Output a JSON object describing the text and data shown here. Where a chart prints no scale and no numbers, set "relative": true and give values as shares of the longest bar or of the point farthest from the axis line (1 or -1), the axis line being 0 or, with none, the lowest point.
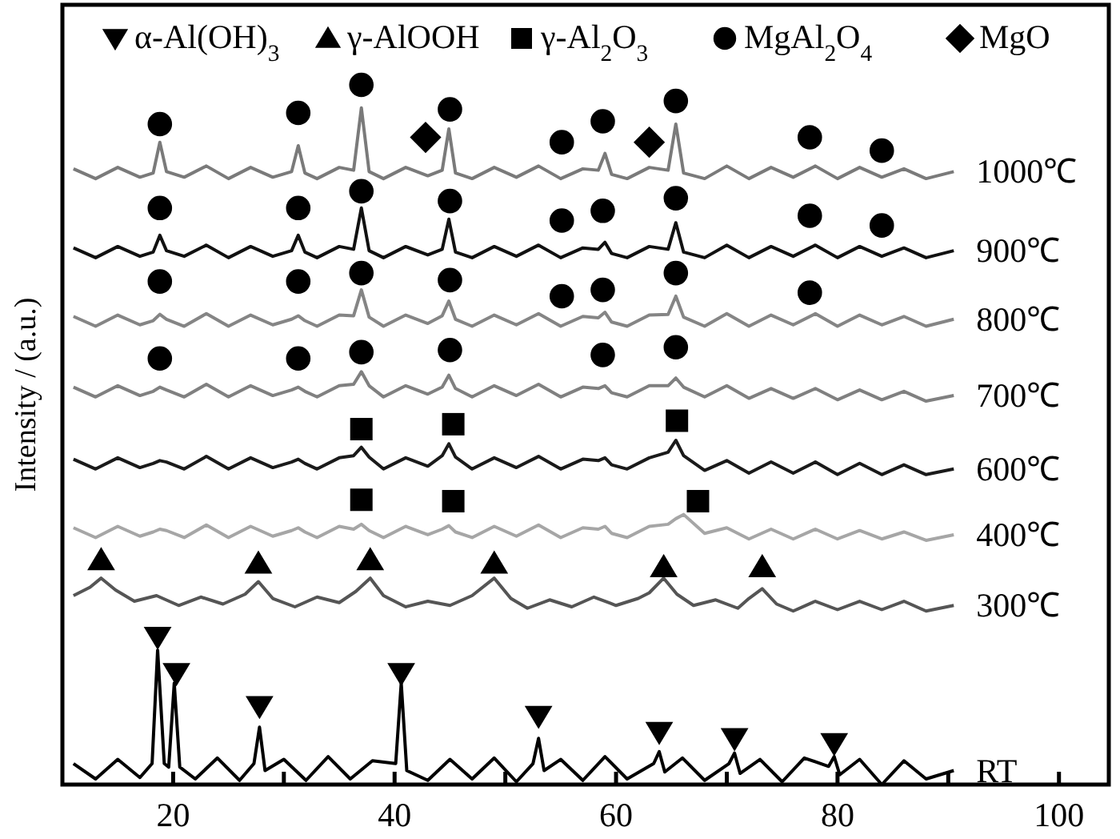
{
  "chart_data": {
    "type": "line",
    "relative": true,
    "ylabel": "Intensity / (a.u.)",
    "xlim": [
      10,
      104.5
    ],
    "xticks": [
      20,
      {
        "value": 30,
        "label": null
      },
      40,
      {
        "value": 50,
        "label": null
      },
      60,
      {
        "value": 70,
        "label": null
      },
      80,
      {
        "value": 90,
        "label": null
      },
      100
    ],
    "legend": "top",
    "grid": false,
    "x": [
      11,
      13,
      15,
      17,
      18.2,
      18.8,
      19.4,
      21,
      23,
      25,
      27,
      29,
      30.7,
      31.3,
      31.9,
      33,
      35,
      36.3,
      37,
      37.7,
      39,
      41,
      43,
      44.3,
      44.9,
      45.5,
      47,
      49,
      51,
      53,
      55,
      57,
      58.4,
      59,
      59.6,
      61,
      63,
      64.7,
      65.4,
      66.1,
      68,
      70,
      72,
      74,
      76,
      78,
      80,
      82,
      84,
      86,
      88,
      90.5
    ],
    "series": [
      {
        "name": "1000℃",
        "color": "#7a7a7a",
        "values": [
          0.88,
          0.866,
          0.882,
          0.868,
          0.874,
          0.918,
          0.876,
          0.868,
          0.884,
          0.866,
          0.882,
          0.868,
          0.876,
          0.913,
          0.874,
          0.866,
          0.882,
          0.878,
          0.967,
          0.876,
          0.866,
          0.882,
          0.87,
          0.878,
          0.937,
          0.874,
          0.866,
          0.882,
          0.868,
          0.884,
          0.866,
          0.88,
          0.878,
          0.902,
          0.872,
          0.866,
          0.882,
          0.878,
          0.944,
          0.874,
          0.866,
          0.884,
          0.866,
          0.882,
          0.868,
          0.884,
          0.866,
          0.882,
          0.868,
          0.88,
          0.866,
          0.876
        ]
      },
      {
        "name": "900℃",
        "color": "#111111",
        "values": [
          0.767,
          0.753,
          0.769,
          0.755,
          0.761,
          0.785,
          0.763,
          0.755,
          0.771,
          0.753,
          0.769,
          0.755,
          0.763,
          0.785,
          0.761,
          0.753,
          0.769,
          0.765,
          0.824,
          0.763,
          0.753,
          0.769,
          0.757,
          0.765,
          0.808,
          0.761,
          0.753,
          0.769,
          0.755,
          0.771,
          0.753,
          0.767,
          0.765,
          0.775,
          0.759,
          0.753,
          0.769,
          0.765,
          0.803,
          0.761,
          0.753,
          0.771,
          0.753,
          0.769,
          0.755,
          0.771,
          0.753,
          0.769,
          0.755,
          0.767,
          0.753,
          0.763
        ]
      },
      {
        "name": "800℃",
        "color": "#858585",
        "values": [
          0.669,
          0.655,
          0.671,
          0.657,
          0.663,
          0.672,
          0.665,
          0.655,
          0.673,
          0.655,
          0.671,
          0.657,
          0.665,
          0.67,
          0.663,
          0.655,
          0.671,
          0.67,
          0.707,
          0.668,
          0.655,
          0.671,
          0.659,
          0.67,
          0.691,
          0.665,
          0.655,
          0.671,
          0.657,
          0.673,
          0.655,
          0.669,
          0.667,
          0.675,
          0.661,
          0.655,
          0.671,
          0.672,
          0.698,
          0.668,
          0.655,
          0.673,
          0.655,
          0.671,
          0.657,
          0.673,
          0.655,
          0.671,
          0.657,
          0.669,
          0.655,
          0.665
        ]
      },
      {
        "name": "700℃",
        "color": "#808080",
        "values": [
          0.568,
          0.554,
          0.57,
          0.556,
          0.562,
          0.568,
          0.564,
          0.554,
          0.572,
          0.554,
          0.57,
          0.556,
          0.564,
          0.568,
          0.562,
          0.554,
          0.57,
          0.572,
          0.59,
          0.57,
          0.554,
          0.57,
          0.558,
          0.568,
          0.585,
          0.566,
          0.554,
          0.57,
          0.556,
          0.572,
          0.554,
          0.568,
          0.566,
          0.57,
          0.56,
          0.554,
          0.57,
          0.57,
          0.581,
          0.568,
          0.554,
          0.57,
          0.552,
          0.566,
          0.552,
          0.566,
          0.55,
          0.564,
          0.55,
          0.562,
          0.548,
          0.556
        ]
      },
      {
        "name": "600℃",
        "color": "#1a1a1a",
        "values": [
          0.465,
          0.451,
          0.467,
          0.453,
          0.459,
          0.463,
          0.461,
          0.451,
          0.469,
          0.451,
          0.467,
          0.453,
          0.461,
          0.465,
          0.459,
          0.451,
          0.467,
          0.47,
          0.482,
          0.468,
          0.451,
          0.467,
          0.455,
          0.47,
          0.487,
          0.468,
          0.451,
          0.467,
          0.453,
          0.469,
          0.451,
          0.465,
          0.463,
          0.467,
          0.457,
          0.451,
          0.467,
          0.475,
          0.492,
          0.47,
          0.449,
          0.463,
          0.445,
          0.461,
          0.445,
          0.461,
          0.443,
          0.459,
          0.443,
          0.457,
          0.443,
          0.451
        ]
      },
      {
        "name": "400℃",
        "color": "#a6a6a6",
        "values": [
          0.367,
          0.353,
          0.369,
          0.355,
          0.361,
          0.365,
          0.363,
          0.353,
          0.371,
          0.353,
          0.369,
          0.355,
          0.363,
          0.367,
          0.361,
          0.353,
          0.369,
          0.365,
          0.372,
          0.363,
          0.353,
          0.369,
          0.357,
          0.365,
          0.37,
          0.361,
          0.353,
          0.369,
          0.355,
          0.371,
          0.353,
          0.367,
          0.365,
          0.369,
          0.359,
          0.353,
          0.369,
          0.372,
          0.38,
          0.386,
          0.359,
          0.367,
          0.351,
          0.365,
          0.351,
          0.365,
          0.351,
          0.363,
          0.351,
          0.361,
          0.349,
          0.357
        ]
      },
      {
        "name": "300℃",
        "color": "#555555",
        "x": [
          11,
          12.5,
          13.5,
          14.8,
          16.5,
          18.5,
          20.5,
          22.5,
          24.5,
          26.5,
          27.7,
          29,
          31,
          33,
          35,
          36.5,
          37.8,
          39,
          41,
          43,
          45,
          47,
          49,
          50.5,
          52,
          54,
          56,
          58,
          60,
          62,
          63,
          64.3,
          65.5,
          67,
          69,
          71,
          72,
          73.2,
          74.5,
          76,
          78,
          80,
          82,
          84,
          86,
          88,
          90.5
        ],
        "values": [
          0.27,
          0.282,
          0.295,
          0.278,
          0.262,
          0.27,
          0.256,
          0.268,
          0.258,
          0.272,
          0.29,
          0.266,
          0.254,
          0.268,
          0.26,
          0.276,
          0.295,
          0.27,
          0.254,
          0.262,
          0.256,
          0.27,
          0.295,
          0.266,
          0.252,
          0.264,
          0.254,
          0.268,
          0.256,
          0.266,
          0.274,
          0.295,
          0.272,
          0.256,
          0.264,
          0.252,
          0.266,
          0.28,
          0.258,
          0.248,
          0.262,
          0.25,
          0.262,
          0.25,
          0.262,
          0.248,
          0.256
        ]
      },
      {
        "name": "RT",
        "color": "#000000",
        "x": [
          11,
          13,
          15,
          17,
          18.1,
          18.6,
          19.2,
          19.6,
          20.1,
          20.6,
          22,
          24,
          26,
          27.3,
          27.8,
          28.3,
          30,
          32,
          34,
          36,
          38,
          40.1,
          40.6,
          41.1,
          43,
          45,
          47,
          49,
          51,
          52.5,
          53,
          53.5,
          55,
          57,
          59,
          61,
          63.4,
          63.9,
          64.4,
          66,
          68,
          70.2,
          70.7,
          71.2,
          73,
          75,
          77,
          79.2,
          79.7,
          80.2,
          82,
          84,
          86,
          88,
          90.5
        ],
        "values": [
          0.03,
          0.008,
          0.036,
          0.01,
          0.03,
          0.192,
          0.03,
          0.025,
          0.145,
          0.025,
          0.008,
          0.038,
          0.006,
          0.03,
          0.082,
          0.02,
          0.036,
          0.006,
          0.04,
          0.008,
          0.034,
          0.03,
          0.145,
          0.02,
          0.006,
          0.036,
          0.008,
          0.038,
          0.004,
          0.03,
          0.066,
          0.02,
          0.036,
          0.006,
          0.04,
          0.008,
          0.03,
          0.047,
          0.018,
          0.038,
          0.006,
          0.03,
          0.045,
          0.016,
          0.036,
          0.004,
          0.038,
          0.026,
          0.04,
          0.014,
          0.036,
          0,
          0.034,
          0.008,
          0.02
        ]
      },
      {
        "name": "α-Al(OH)$_{3}$",
        "type": "scatter",
        "marker": "triangle-down",
        "color": "#000000",
        "x": [
          18.6,
          20.3,
          27.8,
          40.6,
          53,
          63.9,
          70.7,
          79.7
        ],
        "values": [
          0.211,
          0.159,
          0.112,
          0.159,
          0.098,
          0.075,
          0.066,
          0.059
        ]
      },
      {
        "name": "γ-AlOOH",
        "type": "scatter",
        "marker": "triangle",
        "color": "#000000",
        "x": [
          13.5,
          27.7,
          37.8,
          49,
          64.3,
          73.2
        ],
        "values": [
          0.321,
          0.316,
          0.321,
          0.316,
          0.311,
          0.311
        ]
      },
      {
        "name": "γ-Al$_{2}$O$_{3}$",
        "type": "scatter",
        "marker": "square",
        "color": "#000000",
        "x": [
          37,
          45.3,
          65.5,
          37,
          45.3,
          67.4
        ],
        "values": [
          0.508,
          0.515,
          0.52,
          0.407,
          0.405,
          0.405
        ]
      },
      {
        "name": "MgAl$_{2}$O$_{4}$",
        "type": "scatter",
        "marker": "circle",
        "color": "#000000",
        "x": [
          18.8,
          31.3,
          37,
          45,
          55.1,
          58.8,
          65.4,
          77.5,
          84,
          18.8,
          31.3,
          37,
          45,
          55.1,
          58.8,
          65.4,
          77.5,
          84,
          18.8,
          31.3,
          37,
          45,
          55.1,
          58.8,
          65.4,
          77.5,
          18.8,
          31.3,
          37,
          45,
          58.8,
          65.4
        ],
        "values": [
          0.944,
          0.96,
          1,
          0.965,
          0.918,
          0.948,
          0.977,
          0.925,
          0.906,
          0.824,
          0.824,
          0.848,
          0.834,
          0.806,
          0.82,
          0.838,
          0.813,
          0.799,
          0.719,
          0.719,
          0.731,
          0.721,
          0.698,
          0.707,
          0.731,
          0.703,
          0.609,
          0.609,
          0.618,
          0.621,
          0.614,
          0.625
        ]
      },
      {
        "name": "MgO",
        "type": "scatter",
        "marker": "diamond",
        "color": "#000000",
        "x": [
          42.8,
          63
        ],
        "values": [
          0.925,
          0.918
        ]
      }
    ]
  }
}
